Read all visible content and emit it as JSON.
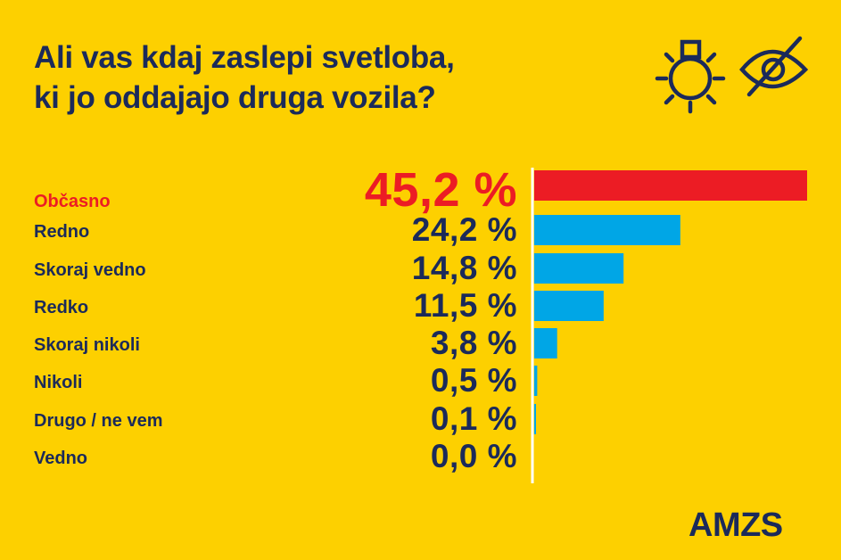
{
  "title_line1": "Ali vas kdaj zaslepi svetloba,",
  "title_line2": "ki jo oddajajo druga vozila?",
  "icons": [
    "light-bulb-icon",
    "eye-slash-icon"
  ],
  "logo": "AMZS",
  "colors": {
    "background": "#fdd000",
    "text": "#1b2a5a",
    "highlight": "#ec1c24",
    "bar": "#00a6e6"
  },
  "chart_data": {
    "type": "bar",
    "orientation": "horizontal",
    "title": "Ali vas kdaj zaslepi svetloba, ki jo oddajajo druga vozila?",
    "categories": [
      "Občasno",
      "Redno",
      "Skoraj vedno",
      "Redko",
      "Skoraj nikoli",
      "Nikoli",
      "Drugo / ne vem",
      "Vedno"
    ],
    "values": [
      45.2,
      24.2,
      14.8,
      11.5,
      3.8,
      0.5,
      0.1,
      0.0
    ],
    "value_labels": [
      "45,2 %",
      "24,2 %",
      "14,8 %",
      "11,5 %",
      "3,8 %",
      "0,5 %",
      "0,1 %",
      "0,0 %"
    ],
    "highlight_index": 0,
    "unit": "%",
    "grid": "dashed row separators",
    "legend": "none"
  }
}
